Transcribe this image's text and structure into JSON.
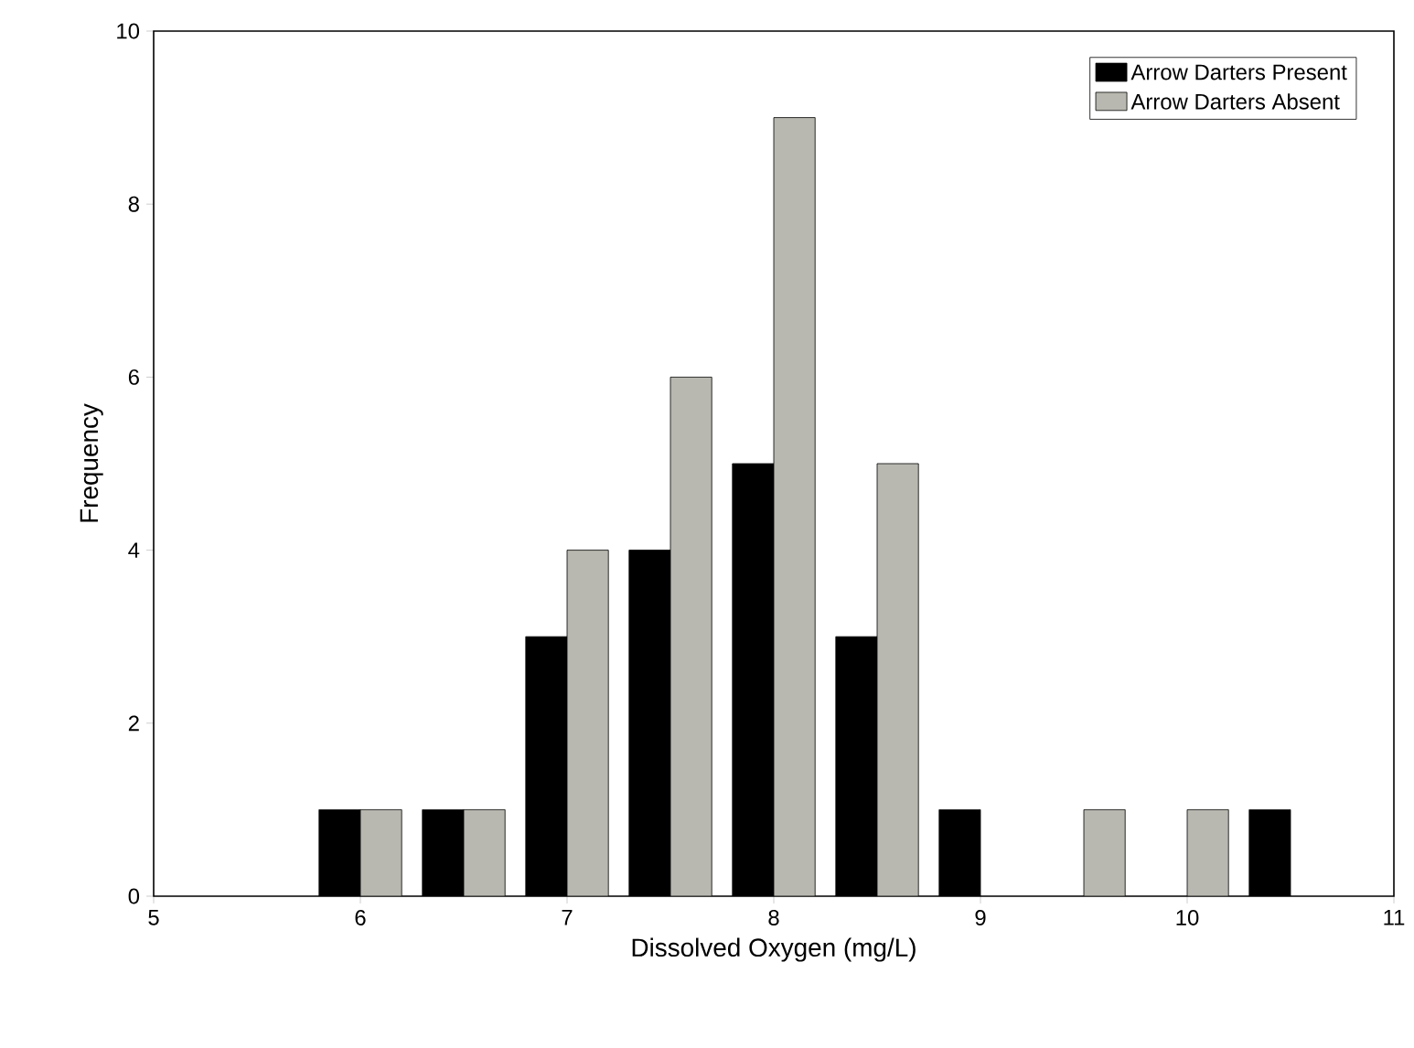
{
  "chart_data": {
    "type": "bar",
    "xlabel": "Dissolved Oxygen (mg/L)",
    "ylabel": "Frequency",
    "xlim": [
      5,
      11
    ],
    "xticks": [
      5,
      6,
      7,
      8,
      9,
      10,
      11
    ],
    "ylim": [
      0,
      10
    ],
    "yticks": [
      0,
      2,
      4,
      6,
      8,
      10
    ],
    "grid": false,
    "legend": "top right",
    "series": [
      {
        "name": "Arrow Darters Present",
        "color": "#000000",
        "x": [
          5.9,
          6.4,
          6.9,
          7.4,
          7.9,
          8.4,
          8.9,
          10.4
        ],
        "values": [
          1,
          1,
          3,
          4,
          5,
          3,
          1,
          1
        ]
      },
      {
        "name": "Arrow Darters Absent",
        "color": "#b8b8b0",
        "x": [
          6.1,
          6.6,
          7.1,
          7.6,
          8.1,
          8.6,
          9.6,
          10.1
        ],
        "values": [
          1,
          1,
          4,
          6,
          9,
          5,
          1,
          1
        ]
      }
    ]
  }
}
